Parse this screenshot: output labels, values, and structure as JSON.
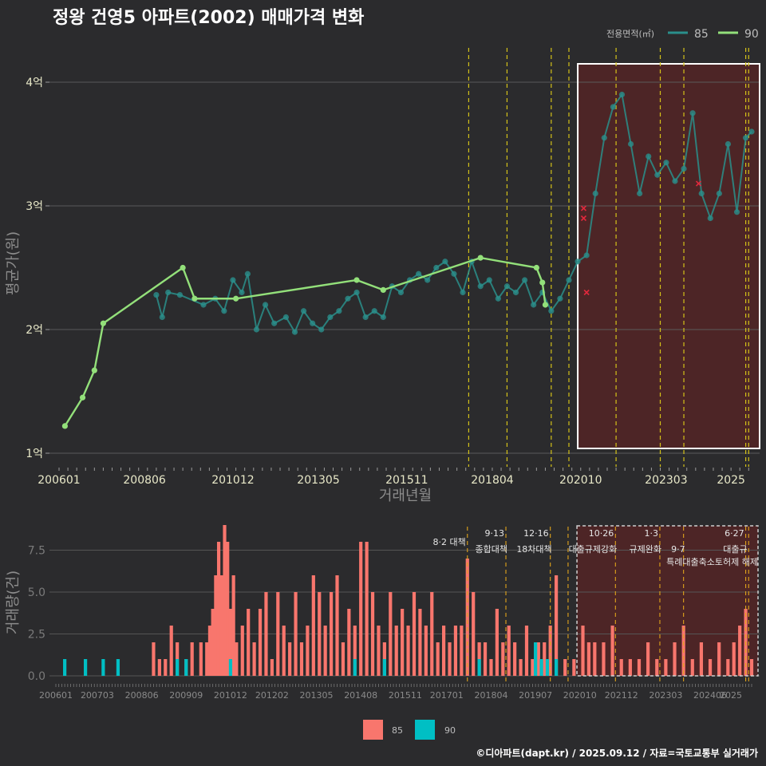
{
  "title": "정왕 건영5 아파트(2002) 매매가격 변화",
  "credit": "©디아파트(dapt.kr) / 2025.09.12 / 자료=국토교통부 실거래가",
  "colors": {
    "background": "#2b2b2d",
    "series85_line": "#2a8f8b",
    "series90_line": "#93e07a",
    "bar85": "#f8766d",
    "bar90": "#00bfc4",
    "policy_line": "#d4c219",
    "highlight_fill": "#5a2424",
    "outlier": "#e0283c"
  },
  "chart_data": [
    {
      "type": "line",
      "title": "정왕 건영5 아파트(2002) 매매가격 변화",
      "xlabel": "거래년월",
      "ylabel": "평균가(원)",
      "x_ticks": [
        "200601",
        "200806",
        "201012",
        "201305",
        "201511",
        "201804",
        "202010",
        "202303",
        "2025"
      ],
      "y_ticks": [
        {
          "value": 1,
          "label": "1억"
        },
        {
          "value": 2,
          "label": "2억"
        },
        {
          "value": 3,
          "label": "3억"
        },
        {
          "value": 4,
          "label": "4억"
        }
      ],
      "ylim": [
        0.9,
        4.3
      ],
      "xlim": [
        "2006-01",
        "2025-08"
      ],
      "legend": {
        "title": "전용면적(㎡)",
        "position": "top-right",
        "entries": [
          {
            "name": "85"
          },
          {
            "name": "90"
          }
        ]
      },
      "series": [
        {
          "name": "90",
          "points": [
            [
              "2006-03",
              1.22
            ],
            [
              "2006-09",
              1.45
            ],
            [
              "2007-01",
              1.67
            ],
            [
              "2007-04",
              2.05
            ],
            [
              "2009-07",
              2.5
            ],
            [
              "2009-11",
              2.25
            ],
            [
              "2011-01",
              2.25
            ],
            [
              "2014-06",
              2.4
            ],
            [
              "2015-03",
              2.32
            ],
            [
              "2017-12",
              2.58
            ],
            [
              "2019-07",
              2.5
            ],
            [
              "2019-09",
              2.38
            ],
            [
              "2019-10",
              2.2
            ]
          ]
        },
        {
          "name": "85",
          "points": [
            [
              "2008-10",
              2.28
            ],
            [
              "2008-12",
              2.1
            ],
            [
              "2009-02",
              2.3
            ],
            [
              "2009-06",
              2.28
            ],
            [
              "2010-02",
              2.2
            ],
            [
              "2010-06",
              2.25
            ],
            [
              "2010-09",
              2.15
            ],
            [
              "2010-12",
              2.4
            ],
            [
              "2011-03",
              2.3
            ],
            [
              "2011-05",
              2.45
            ],
            [
              "2011-08",
              2.0
            ],
            [
              "2011-11",
              2.2
            ],
            [
              "2012-02",
              2.05
            ],
            [
              "2012-06",
              2.1
            ],
            [
              "2012-09",
              1.98
            ],
            [
              "2012-12",
              2.15
            ],
            [
              "2013-03",
              2.05
            ],
            [
              "2013-06",
              2.0
            ],
            [
              "2013-09",
              2.1
            ],
            [
              "2013-12",
              2.15
            ],
            [
              "2014-03",
              2.25
            ],
            [
              "2014-06",
              2.3
            ],
            [
              "2014-09",
              2.1
            ],
            [
              "2014-12",
              2.15
            ],
            [
              "2015-03",
              2.1
            ],
            [
              "2015-06",
              2.35
            ],
            [
              "2015-09",
              2.3
            ],
            [
              "2015-12",
              2.4
            ],
            [
              "2016-03",
              2.45
            ],
            [
              "2016-06",
              2.4
            ],
            [
              "2016-09",
              2.5
            ],
            [
              "2016-12",
              2.55
            ],
            [
              "2017-03",
              2.45
            ],
            [
              "2017-06",
              2.3
            ],
            [
              "2017-09",
              2.55
            ],
            [
              "2017-12",
              2.35
            ],
            [
              "2018-03",
              2.4
            ],
            [
              "2018-06",
              2.25
            ],
            [
              "2018-09",
              2.35
            ],
            [
              "2018-12",
              2.3
            ],
            [
              "2019-03",
              2.4
            ],
            [
              "2019-06",
              2.2
            ],
            [
              "2019-09",
              2.3
            ],
            [
              "2019-12",
              2.15
            ],
            [
              "2020-03",
              2.25
            ],
            [
              "2020-06",
              2.4
            ],
            [
              "2020-09",
              2.55
            ],
            [
              "2020-12",
              2.6
            ],
            [
              "2021-03",
              3.1
            ],
            [
              "2021-06",
              3.55
            ],
            [
              "2021-09",
              3.8
            ],
            [
              "2021-12",
              3.9
            ],
            [
              "2022-03",
              3.5
            ],
            [
              "2022-06",
              3.1
            ],
            [
              "2022-09",
              3.4
            ],
            [
              "2022-12",
              3.25
            ],
            [
              "2023-03",
              3.35
            ],
            [
              "2023-06",
              3.2
            ],
            [
              "2023-09",
              3.3
            ],
            [
              "2023-12",
              3.75
            ],
            [
              "2024-03",
              3.1
            ],
            [
              "2024-06",
              2.9
            ],
            [
              "2024-09",
              3.1
            ],
            [
              "2024-12",
              3.5
            ],
            [
              "2025-03",
              2.95
            ],
            [
              "2025-06",
              3.55
            ],
            [
              "2025-08",
              3.6
            ]
          ]
        }
      ],
      "outliers": [
        [
          "2020-11",
          2.98
        ],
        [
          "2020-11",
          2.9
        ],
        [
          "2020-12",
          2.3
        ],
        [
          "2024-02",
          3.18
        ]
      ],
      "highlight": {
        "from": "2020-09",
        "to": "2025-08"
      },
      "policy_dates": [
        "2017-08",
        "2018-09",
        "2019-12",
        "2020-06",
        "2021-10",
        "2023-01",
        "2023-09",
        "2025-06",
        "2025-07"
      ]
    },
    {
      "type": "bar",
      "xlabel": "",
      "ylabel": "거래량(건)",
      "x_ticks": [
        "200601",
        "200703",
        "200806",
        "200909",
        "201012",
        "201202",
        "201305",
        "201408",
        "201511",
        "201701",
        "201804",
        "201907",
        "202010",
        "202112",
        "202303",
        "202406",
        "2025"
      ],
      "y_ticks": [
        {
          "value": 0,
          "label": "0.0"
        },
        {
          "value": 2.5,
          "label": "2.5"
        },
        {
          "value": 5,
          "label": "5.0"
        },
        {
          "value": 7.5,
          "label": "7.5"
        }
      ],
      "ylim": [
        0,
        9.2
      ],
      "legend": {
        "position": "bottom",
        "entries": [
          {
            "name": "85"
          },
          {
            "name": "90"
          }
        ]
      },
      "series": [
        {
          "name": "90",
          "points": [
            [
              "2006-04",
              1
            ],
            [
              "2006-11",
              1
            ],
            [
              "2007-05",
              1
            ],
            [
              "2007-10",
              1
            ],
            [
              "2009-06",
              1
            ],
            [
              "2009-09",
              1
            ],
            [
              "2010-12",
              1
            ],
            [
              "2014-06",
              1
            ],
            [
              "2015-04",
              1
            ],
            [
              "2017-12",
              1
            ],
            [
              "2019-07",
              2
            ],
            [
              "2019-09",
              1
            ],
            [
              "2019-11",
              1
            ],
            [
              "2020-02",
              1
            ]
          ]
        },
        {
          "name": "85",
          "points": [
            [
              "2008-10",
              2
            ],
            [
              "2008-12",
              1
            ],
            [
              "2009-02",
              1
            ],
            [
              "2009-04",
              3
            ],
            [
              "2009-06",
              2
            ],
            [
              "2009-09",
              1
            ],
            [
              "2009-11",
              2
            ],
            [
              "2010-02",
              2
            ],
            [
              "2010-04",
              2
            ],
            [
              "2010-05",
              3
            ],
            [
              "2010-06",
              4
            ],
            [
              "2010-07",
              6
            ],
            [
              "2010-08",
              8
            ],
            [
              "2010-09",
              6
            ],
            [
              "2010-10",
              9
            ],
            [
              "2010-11",
              8
            ],
            [
              "2010-12",
              4
            ],
            [
              "2011-01",
              6
            ],
            [
              "2011-02",
              2
            ],
            [
              "2011-04",
              3
            ],
            [
              "2011-06",
              4
            ],
            [
              "2011-08",
              2
            ],
            [
              "2011-10",
              4
            ],
            [
              "2011-12",
              5
            ],
            [
              "2012-02",
              1
            ],
            [
              "2012-04",
              5
            ],
            [
              "2012-06",
              3
            ],
            [
              "2012-08",
              2
            ],
            [
              "2012-10",
              5
            ],
            [
              "2012-12",
              2
            ],
            [
              "2013-02",
              3
            ],
            [
              "2013-04",
              6
            ],
            [
              "2013-06",
              5
            ],
            [
              "2013-08",
              3
            ],
            [
              "2013-10",
              5
            ],
            [
              "2013-12",
              6
            ],
            [
              "2014-02",
              2
            ],
            [
              "2014-04",
              4
            ],
            [
              "2014-06",
              3
            ],
            [
              "2014-08",
              8
            ],
            [
              "2014-10",
              8
            ],
            [
              "2014-12",
              5
            ],
            [
              "2015-02",
              3
            ],
            [
              "2015-04",
              2
            ],
            [
              "2015-06",
              5
            ],
            [
              "2015-08",
              3
            ],
            [
              "2015-10",
              4
            ],
            [
              "2015-12",
              3
            ],
            [
              "2016-02",
              5
            ],
            [
              "2016-04",
              4
            ],
            [
              "2016-06",
              3
            ],
            [
              "2016-08",
              5
            ],
            [
              "2016-10",
              2
            ],
            [
              "2016-12",
              3
            ],
            [
              "2017-02",
              2
            ],
            [
              "2017-04",
              3
            ],
            [
              "2017-06",
              3
            ],
            [
              "2017-08",
              7
            ],
            [
              "2017-10",
              5
            ],
            [
              "2017-12",
              2
            ],
            [
              "2018-02",
              2
            ],
            [
              "2018-04",
              1
            ],
            [
              "2018-06",
              4
            ],
            [
              "2018-08",
              2
            ],
            [
              "2018-10",
              3
            ],
            [
              "2018-12",
              2
            ],
            [
              "2019-02",
              1
            ],
            [
              "2019-04",
              3
            ],
            [
              "2019-06",
              1
            ],
            [
              "2019-08",
              2
            ],
            [
              "2019-10",
              2
            ],
            [
              "2019-12",
              3
            ],
            [
              "2020-02",
              6
            ],
            [
              "2020-05",
              1
            ],
            [
              "2020-08",
              1
            ],
            [
              "2020-11",
              3
            ],
            [
              "2021-01",
              2
            ],
            [
              "2021-03",
              2
            ],
            [
              "2021-06",
              2
            ],
            [
              "2021-09",
              3
            ],
            [
              "2021-12",
              1
            ],
            [
              "2022-03",
              1
            ],
            [
              "2022-06",
              1
            ],
            [
              "2022-09",
              2
            ],
            [
              "2022-12",
              1
            ],
            [
              "2023-03",
              1
            ],
            [
              "2023-06",
              2
            ],
            [
              "2023-09",
              3
            ],
            [
              "2023-12",
              1
            ],
            [
              "2024-03",
              2
            ],
            [
              "2024-06",
              1
            ],
            [
              "2024-09",
              2
            ],
            [
              "2024-12",
              1
            ],
            [
              "2025-02",
              2
            ],
            [
              "2025-04",
              3
            ],
            [
              "2025-06",
              4
            ],
            [
              "2025-08",
              1
            ]
          ]
        }
      ],
      "highlight": {
        "from": "2020-09",
        "to": "2025-08"
      },
      "policies": [
        {
          "date": "2017-08",
          "line1": "8·2 대책",
          "line2": ""
        },
        {
          "date": "2018-09",
          "line1": "9·13",
          "line2": "종합대책"
        },
        {
          "date": "2019-12",
          "line1": "12·16",
          "line2": "18차대책"
        },
        {
          "date": "2020-06",
          "line1": "",
          "line2": ""
        },
        {
          "date": "2021-10",
          "line1": "10·26",
          "line2": "대출규제강화"
        },
        {
          "date": "2023-01",
          "line1": "1·3",
          "line2": "규제완화"
        },
        {
          "date": "2023-09",
          "line1": "",
          "line2": "9·7"
        },
        {
          "date": "2025-06",
          "line1": "6·27",
          "line2": "대출규"
        },
        {
          "date": "2025-07",
          "line1": "",
          "line2": ""
        }
      ],
      "note_line3": "특례대출축소토허제 해제"
    }
  ]
}
